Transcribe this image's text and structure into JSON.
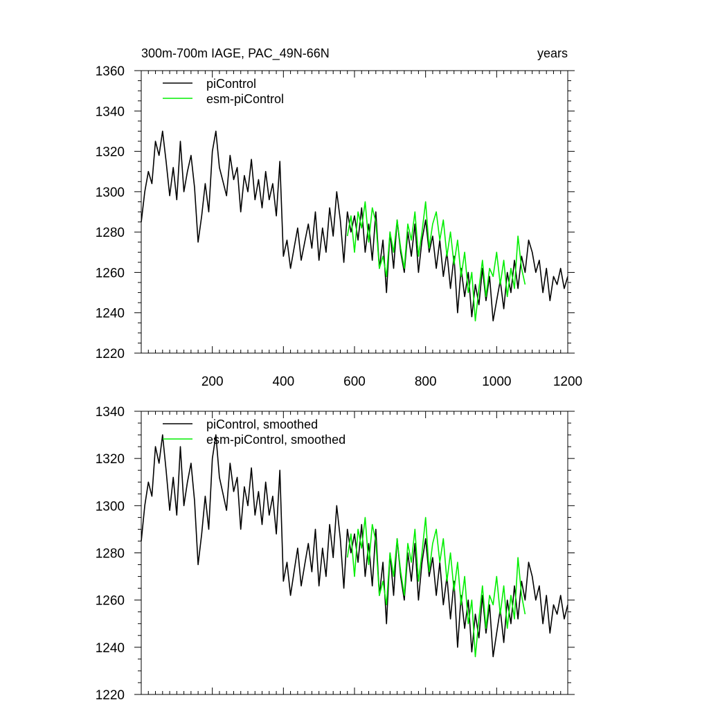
{
  "colors": {
    "picontrol": "#000000",
    "esm_picontrol": "#00ee00"
  },
  "chart_data": [
    {
      "type": "line",
      "title": "300m-700m IAGE, PAC_49N-66N",
      "title_right": "years",
      "xlim": [
        0,
        1200
      ],
      "ylim": [
        1220,
        1360
      ],
      "yticks": [
        "1220",
        "1240",
        "1260",
        "1280",
        "1300",
        "1320",
        "1340",
        "1360"
      ],
      "xticks": [
        "200",
        "400",
        "600",
        "800",
        "1000",
        "1200"
      ],
      "legend_location": "top-left",
      "series": [
        {
          "name": "piControl",
          "color": "#000000",
          "x": [
            0,
            10,
            20,
            30,
            40,
            50,
            60,
            70,
            80,
            90,
            100,
            110,
            120,
            130,
            140,
            150,
            160,
            170,
            180,
            190,
            200,
            210,
            220,
            230,
            240,
            250,
            260,
            270,
            280,
            290,
            300,
            310,
            320,
            330,
            340,
            350,
            360,
            370,
            380,
            390,
            400,
            410,
            420,
            430,
            440,
            450,
            460,
            470,
            480,
            490,
            500,
            510,
            520,
            530,
            540,
            550,
            560,
            570,
            580,
            590,
            600,
            610,
            620,
            630,
            640,
            650,
            660,
            670,
            680,
            690,
            700,
            710,
            720,
            730,
            740,
            750,
            760,
            770,
            780,
            790,
            800,
            810,
            820,
            830,
            840,
            850,
            860,
            870,
            880,
            890,
            900,
            910,
            920,
            930,
            940,
            950,
            960,
            970,
            980,
            990,
            1000,
            1010,
            1020,
            1030,
            1040,
            1050,
            1060,
            1070,
            1080,
            1090,
            1100,
            1110,
            1120,
            1130,
            1140,
            1150,
            1160,
            1170,
            1180,
            1190,
            1200
          ],
          "values": [
            1285,
            1300,
            1310,
            1304,
            1325,
            1318,
            1330,
            1315,
            1298,
            1312,
            1296,
            1325,
            1300,
            1310,
            1318,
            1302,
            1275,
            1288,
            1304,
            1290,
            1320,
            1330,
            1312,
            1305,
            1298,
            1318,
            1306,
            1312,
            1290,
            1308,
            1300,
            1316,
            1296,
            1306,
            1292,
            1310,
            1296,
            1304,
            1288,
            1315,
            1268,
            1276,
            1262,
            1272,
            1282,
            1266,
            1275,
            1284,
            1272,
            1290,
            1266,
            1282,
            1270,
            1292,
            1278,
            1300,
            1286,
            1265,
            1290,
            1280,
            1288,
            1276,
            1292,
            1270,
            1284,
            1266,
            1290,
            1262,
            1276,
            1250,
            1280,
            1262,
            1286,
            1270,
            1260,
            1280,
            1268,
            1284,
            1260,
            1276,
            1286,
            1270,
            1278,
            1262,
            1276,
            1258,
            1270,
            1252,
            1268,
            1240,
            1262,
            1248,
            1260,
            1238,
            1254,
            1244,
            1262,
            1246,
            1258,
            1236,
            1246,
            1256,
            1242,
            1260,
            1250,
            1266,
            1252,
            1268,
            1260,
            1276,
            1270,
            1260,
            1266,
            1250,
            1262,
            1246,
            1258,
            1254,
            1262,
            1252,
            1258
          ]
        },
        {
          "name": "esm-piControl",
          "color": "#00ee00",
          "x": [
            580,
            590,
            600,
            610,
            620,
            630,
            640,
            650,
            660,
            670,
            680,
            690,
            700,
            710,
            720,
            730,
            740,
            750,
            760,
            770,
            780,
            790,
            800,
            810,
            820,
            830,
            840,
            850,
            860,
            870,
            880,
            890,
            900,
            910,
            920,
            930,
            940,
            950,
            960,
            970,
            980,
            990,
            1000,
            1010,
            1020,
            1030,
            1040,
            1050,
            1060,
            1070,
            1080
          ],
          "values": [
            1278,
            1288,
            1270,
            1290,
            1282,
            1295,
            1275,
            1292,
            1285,
            1262,
            1268,
            1258,
            1280,
            1270,
            1286,
            1272,
            1262,
            1284,
            1276,
            1290,
            1268,
            1280,
            1295,
            1272,
            1284,
            1290,
            1276,
            1286,
            1268,
            1280,
            1264,
            1276,
            1258,
            1270,
            1250,
            1260,
            1236,
            1252,
            1266,
            1248,
            1262,
            1258,
            1270,
            1254,
            1266,
            1248,
            1262,
            1252,
            1278,
            1262,
            1254
          ]
        }
      ]
    },
    {
      "type": "line",
      "xlim": [
        0,
        1200
      ],
      "ylim": [
        1220,
        1340
      ],
      "yticks": [
        "1220",
        "1240",
        "1260",
        "1280",
        "1300",
        "1320",
        "1340"
      ],
      "xticks": [],
      "legend_location": "top-left",
      "series": [
        {
          "name": "piControl, smoothed",
          "color": "#000000",
          "x": [
            0,
            10,
            20,
            30,
            40,
            50,
            60,
            70,
            80,
            90,
            100,
            110,
            120,
            130,
            140,
            150,
            160,
            170,
            180,
            190,
            200,
            210,
            220,
            230,
            240,
            250,
            260,
            270,
            280,
            290,
            300,
            310,
            320,
            330,
            340,
            350,
            360,
            370,
            380,
            390,
            400,
            410,
            420,
            430,
            440,
            450,
            460,
            470,
            480,
            490,
            500,
            510,
            520,
            530,
            540,
            550,
            560,
            570,
            580,
            590,
            600,
            610,
            620,
            630,
            640,
            650,
            660,
            670,
            680,
            690,
            700,
            710,
            720,
            730,
            740,
            750,
            760,
            770,
            780,
            790,
            800,
            810,
            820,
            830,
            840,
            850,
            860,
            870,
            880,
            890,
            900,
            910,
            920,
            930,
            940,
            950,
            960,
            970,
            980,
            990,
            1000,
            1010,
            1020,
            1030,
            1040,
            1050,
            1060,
            1070,
            1080,
            1090,
            1100,
            1110,
            1120,
            1130,
            1140,
            1150,
            1160,
            1170,
            1180,
            1190,
            1200
          ],
          "values": [
            1285,
            1300,
            1310,
            1304,
            1325,
            1318,
            1330,
            1315,
            1298,
            1312,
            1296,
            1325,
            1300,
            1310,
            1318,
            1302,
            1275,
            1288,
            1304,
            1290,
            1320,
            1330,
            1312,
            1305,
            1298,
            1318,
            1306,
            1312,
            1290,
            1308,
            1300,
            1316,
            1296,
            1306,
            1292,
            1310,
            1296,
            1304,
            1288,
            1315,
            1268,
            1276,
            1262,
            1272,
            1282,
            1266,
            1275,
            1284,
            1272,
            1290,
            1266,
            1282,
            1270,
            1292,
            1278,
            1300,
            1286,
            1265,
            1290,
            1280,
            1288,
            1276,
            1292,
            1270,
            1284,
            1266,
            1290,
            1262,
            1276,
            1250,
            1280,
            1262,
            1286,
            1270,
            1260,
            1280,
            1268,
            1284,
            1260,
            1276,
            1286,
            1270,
            1278,
            1262,
            1276,
            1258,
            1270,
            1252,
            1268,
            1240,
            1262,
            1248,
            1260,
            1238,
            1254,
            1244,
            1262,
            1246,
            1258,
            1236,
            1246,
            1256,
            1242,
            1260,
            1250,
            1266,
            1252,
            1268,
            1260,
            1276,
            1270,
            1260,
            1266,
            1250,
            1262,
            1246,
            1258,
            1254,
            1262,
            1252,
            1258
          ]
        },
        {
          "name": "esm-piControl, smoothed",
          "color": "#00ee00",
          "x": [
            580,
            590,
            600,
            610,
            620,
            630,
            640,
            650,
            660,
            670,
            680,
            690,
            700,
            710,
            720,
            730,
            740,
            750,
            760,
            770,
            780,
            790,
            800,
            810,
            820,
            830,
            840,
            850,
            860,
            870,
            880,
            890,
            900,
            910,
            920,
            930,
            940,
            950,
            960,
            970,
            980,
            990,
            1000,
            1010,
            1020,
            1030,
            1040,
            1050,
            1060,
            1070,
            1080
          ],
          "values": [
            1278,
            1288,
            1270,
            1290,
            1282,
            1295,
            1275,
            1292,
            1285,
            1262,
            1268,
            1258,
            1280,
            1270,
            1286,
            1272,
            1262,
            1284,
            1276,
            1290,
            1268,
            1280,
            1295,
            1272,
            1284,
            1290,
            1276,
            1286,
            1268,
            1280,
            1264,
            1276,
            1258,
            1270,
            1250,
            1260,
            1236,
            1252,
            1266,
            1248,
            1262,
            1258,
            1270,
            1254,
            1266,
            1248,
            1262,
            1252,
            1278,
            1262,
            1254
          ]
        }
      ]
    }
  ]
}
